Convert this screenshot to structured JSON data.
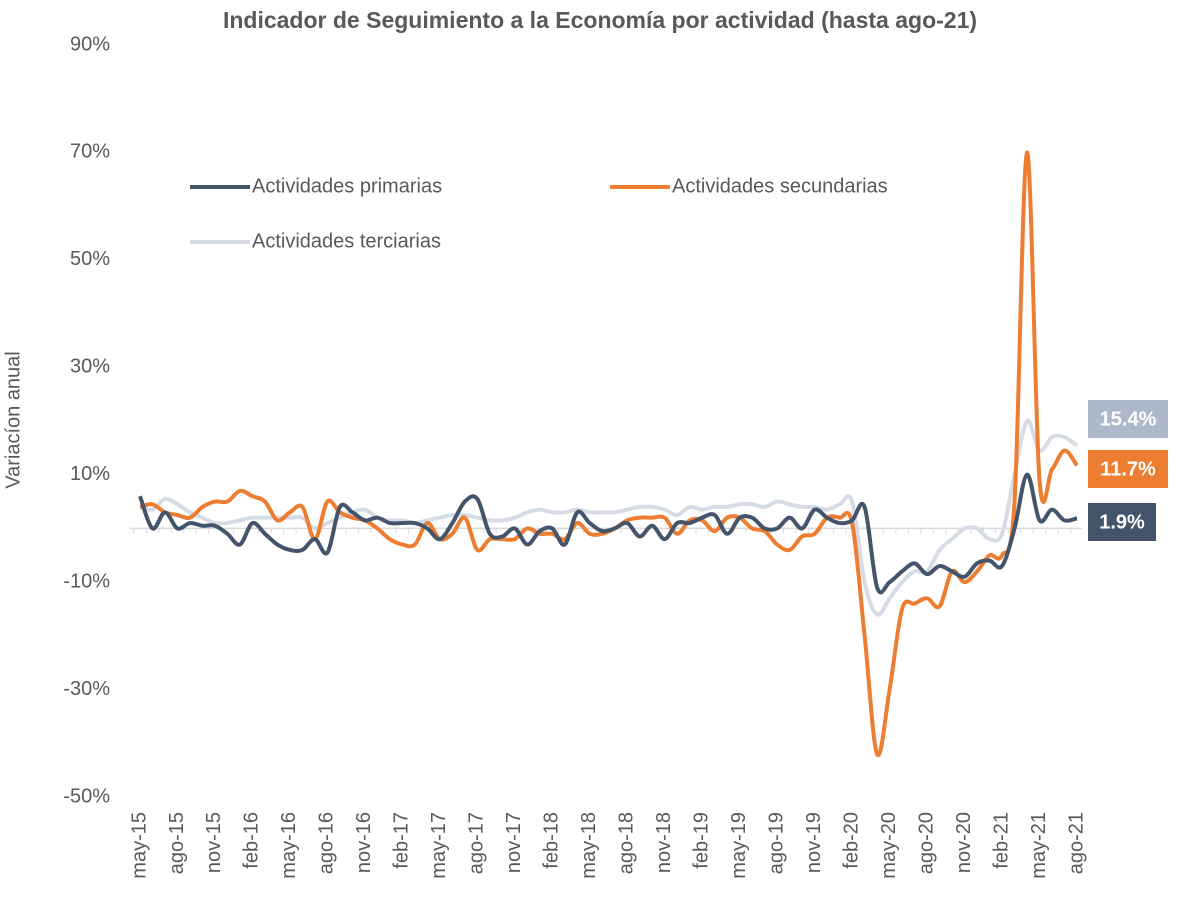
{
  "chart_data": {
    "type": "line",
    "title": "Indicador de Seguimiento a la Economía por actividad (hasta ago-21)",
    "y_label": "Variacíon anual",
    "categories": [
      "may-15",
      null,
      null,
      "ago-15",
      null,
      null,
      "nov-15",
      null,
      null,
      "feb-16",
      null,
      null,
      "may-16",
      null,
      null,
      "ago-16",
      null,
      null,
      "nov-16",
      null,
      null,
      "feb-17",
      null,
      null,
      "may-17",
      null,
      null,
      "ago-17",
      null,
      null,
      "nov-17",
      null,
      null,
      "feb-18",
      null,
      null,
      "may-18",
      null,
      null,
      "ago-18",
      null,
      null,
      "nov-18",
      null,
      null,
      "feb-19",
      null,
      null,
      "may-19",
      null,
      null,
      "ago-19",
      null,
      null,
      "nov-19",
      null,
      null,
      "feb-20",
      null,
      null,
      "may-20",
      null,
      null,
      "ago-20",
      null,
      null,
      "nov-20",
      null,
      null,
      "feb-21",
      null,
      null,
      "may-21",
      null,
      null,
      "ago-21"
    ],
    "ylim": [
      -50,
      90
    ],
    "yticks": [
      {
        "value": -50,
        "label": "-50%"
      },
      {
        "value": -30,
        "label": "-30%"
      },
      {
        "value": -10,
        "label": "-10%"
      },
      {
        "value": 10,
        "label": "10%"
      },
      {
        "value": 30,
        "label": "30%"
      },
      {
        "value": 50,
        "label": "50%"
      },
      {
        "value": 70,
        "label": "70%"
      },
      {
        "value": 90,
        "label": "90%"
      }
    ],
    "grid": false,
    "series": [
      {
        "name": "Actividades primarias",
        "color": "#44546a",
        "values": [
          6,
          0,
          3,
          0,
          1,
          0.5,
          0.5,
          -1,
          -3,
          1,
          -1,
          -3,
          -4,
          -4,
          -2,
          -4.5,
          4,
          3,
          1.5,
          2,
          1,
          1,
          1,
          0,
          -2,
          1,
          5,
          5.5,
          -1,
          -1.5,
          0,
          -3,
          -0.5,
          0,
          -3,
          3,
          1,
          -0.5,
          0,
          1,
          -1.5,
          0.5,
          -2,
          1,
          1,
          2,
          2.5,
          -1,
          2,
          2,
          0,
          0,
          2,
          0,
          3.5,
          2,
          1,
          1.5,
          4,
          -11,
          -10,
          -8,
          -6.5,
          -8.5,
          -7,
          -8,
          -9,
          -6.5,
          -6,
          -7,
          0,
          10,
          1.5,
          3.5,
          1.5,
          1.9
        ],
        "value_labels": [
          null,
          null,
          null,
          null,
          null,
          null,
          null,
          null,
          null,
          null,
          null,
          null,
          null,
          null,
          null,
          null,
          null,
          null,
          null,
          null,
          null,
          null,
          null,
          null,
          null,
          null,
          null,
          null,
          null,
          null,
          null,
          null,
          null,
          null,
          null,
          null,
          null,
          null,
          null,
          null,
          null,
          null,
          null,
          null,
          null,
          null,
          null,
          null,
          null,
          null,
          null,
          null,
          null,
          null,
          null,
          null,
          null,
          null,
          null,
          null,
          null,
          null,
          null,
          null,
          null,
          null,
          null,
          null,
          null,
          null,
          null,
          null,
          null,
          null,
          null,
          "1.9%"
        ]
      },
      {
        "name": "Actividades secundarias",
        "color": "#ed7d31",
        "values": [
          4,
          4.5,
          3,
          2.5,
          2,
          4,
          5,
          5,
          7,
          6,
          5,
          1.5,
          3,
          4,
          -2,
          5,
          3,
          2,
          1.5,
          0,
          -2,
          -3,
          -3,
          1,
          -2,
          -1,
          2,
          -4,
          -2,
          -2,
          -2,
          0,
          -1,
          -1,
          -2,
          1,
          -1,
          -1,
          0,
          1.5,
          2,
          2,
          2,
          -1,
          1.5,
          1.5,
          -0.5,
          2,
          2,
          0,
          -0.5,
          -3,
          -4,
          -1.5,
          -1,
          2,
          2,
          1,
          -20,
          -42,
          -30,
          -15,
          -14,
          -13,
          -14.5,
          -8,
          -10,
          -8,
          -5,
          -5,
          5,
          70,
          9,
          11,
          14.5,
          11.7
        ],
        "value_labels": [
          null,
          null,
          null,
          null,
          null,
          null,
          null,
          null,
          null,
          null,
          null,
          null,
          null,
          null,
          null,
          null,
          null,
          null,
          null,
          null,
          null,
          null,
          null,
          null,
          null,
          null,
          null,
          null,
          null,
          null,
          null,
          null,
          null,
          null,
          null,
          null,
          null,
          null,
          null,
          null,
          null,
          null,
          null,
          null,
          null,
          null,
          null,
          null,
          null,
          null,
          null,
          null,
          null,
          null,
          null,
          null,
          null,
          null,
          null,
          null,
          null,
          null,
          null,
          null,
          null,
          null,
          null,
          null,
          null,
          null,
          null,
          null,
          null,
          null,
          null,
          "11.7%"
        ]
      },
      {
        "name": "Actividades terciarias",
        "color": "#d6dce5",
        "values": [
          4,
          3.5,
          5.5,
          4.5,
          3,
          2,
          1,
          1,
          1.5,
          2,
          2,
          2,
          2,
          2,
          0,
          1,
          2,
          3,
          3.5,
          2,
          1.5,
          1.5,
          1,
          1.5,
          2,
          2.5,
          2.5,
          2,
          1.5,
          1.5,
          2,
          3,
          3.5,
          3,
          3,
          3.5,
          3,
          3,
          3,
          3.5,
          4,
          4,
          3.5,
          2.5,
          4,
          3.5,
          4,
          4,
          4.5,
          4.5,
          4,
          5,
          4.5,
          4,
          4,
          3.5,
          4.5,
          5,
          -10,
          -16,
          -13,
          -10,
          -8,
          -8,
          -4,
          -2,
          0,
          0,
          -2,
          -1,
          10,
          20,
          14.5,
          17,
          17,
          15.4
        ],
        "value_labels": [
          null,
          null,
          null,
          null,
          null,
          null,
          null,
          null,
          null,
          null,
          null,
          null,
          null,
          null,
          null,
          null,
          null,
          null,
          null,
          null,
          null,
          null,
          null,
          null,
          null,
          null,
          null,
          null,
          null,
          null,
          null,
          null,
          null,
          null,
          null,
          null,
          null,
          null,
          null,
          null,
          null,
          null,
          null,
          null,
          null,
          null,
          null,
          null,
          null,
          null,
          null,
          null,
          null,
          null,
          null,
          null,
          null,
          null,
          null,
          null,
          null,
          null,
          null,
          null,
          null,
          null,
          null,
          null,
          null,
          null,
          null,
          null,
          null,
          null,
          null,
          "15.4%"
        ]
      }
    ]
  }
}
